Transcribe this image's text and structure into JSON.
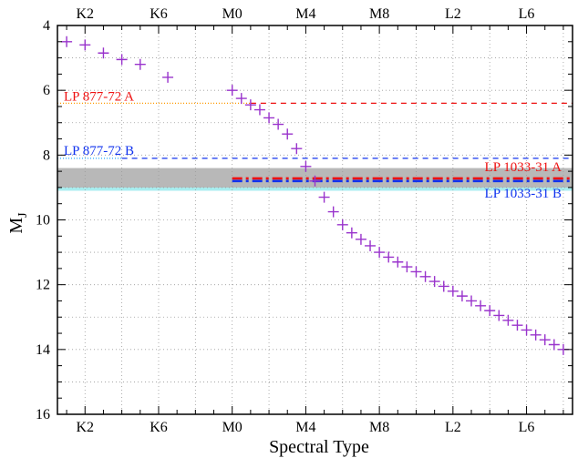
{
  "chart_data": {
    "type": "scatter",
    "title": "",
    "xlabel": "Spectral Type",
    "ylabel": "M",
    "ylabel_sub": "J",
    "x_tick_labels": [
      "K2",
      "K6",
      "M0",
      "M4",
      "M8",
      "L2",
      "L6"
    ],
    "x_tick_values": [
      2,
      6,
      10,
      14,
      18,
      22,
      26
    ],
    "xlim": [
      0.5,
      28.5
    ],
    "y_ticks": [
      4,
      6,
      8,
      10,
      12,
      14,
      16
    ],
    "ylim": [
      16,
      4
    ],
    "y_inverted": true,
    "grid": true,
    "marker": "plus",
    "marker_color": "#9933cc",
    "series": [
      {
        "x": [
          1,
          2,
          3,
          4,
          5,
          6.5,
          10,
          10.5,
          11,
          11.5,
          12,
          12.5,
          13,
          13.5,
          14,
          14.5,
          15,
          15.5,
          16,
          16.5,
          17,
          17.5,
          18,
          18.5,
          19,
          19.5,
          20,
          20.5,
          21,
          21.5,
          22,
          22.5,
          23,
          23.5,
          24,
          24.5,
          25,
          25.5,
          26,
          26.5,
          27,
          27.5,
          28
        ],
        "y": [
          4.5,
          4.6,
          4.85,
          5.05,
          5.2,
          5.6,
          6.0,
          6.25,
          6.45,
          6.6,
          6.85,
          7.05,
          7.35,
          7.8,
          8.35,
          8.8,
          9.3,
          9.75,
          10.15,
          10.4,
          10.6,
          10.8,
          11.0,
          11.15,
          11.3,
          11.45,
          11.6,
          11.75,
          11.9,
          12.05,
          12.2,
          12.35,
          12.5,
          12.65,
          12.8,
          12.95,
          13.1,
          13.25,
          13.4,
          13.55,
          13.7,
          13.85,
          14.0
        ]
      }
    ],
    "reference_lines": [
      {
        "label": "LP 877-72 A",
        "y": 6.4,
        "color": "#ee1111",
        "dash": "dashed"
      },
      {
        "label": "LP 877-72 B",
        "y": 8.1,
        "color": "#1133ee",
        "dash": "dashed"
      },
      {
        "label": "LP 1033-31 A",
        "y": 8.72,
        "color": "#ee1111",
        "dash": "dashdot"
      },
      {
        "label": "LP 1033-31 B",
        "y": 8.8,
        "color": "#1133ee",
        "dash": "dashdot"
      }
    ],
    "bands": [
      {
        "y_range": [
          8.55,
          9.1
        ],
        "color": "#a8eef0"
      },
      {
        "y_range": [
          8.4,
          9.0
        ],
        "color": "#b8b8b8"
      }
    ]
  }
}
